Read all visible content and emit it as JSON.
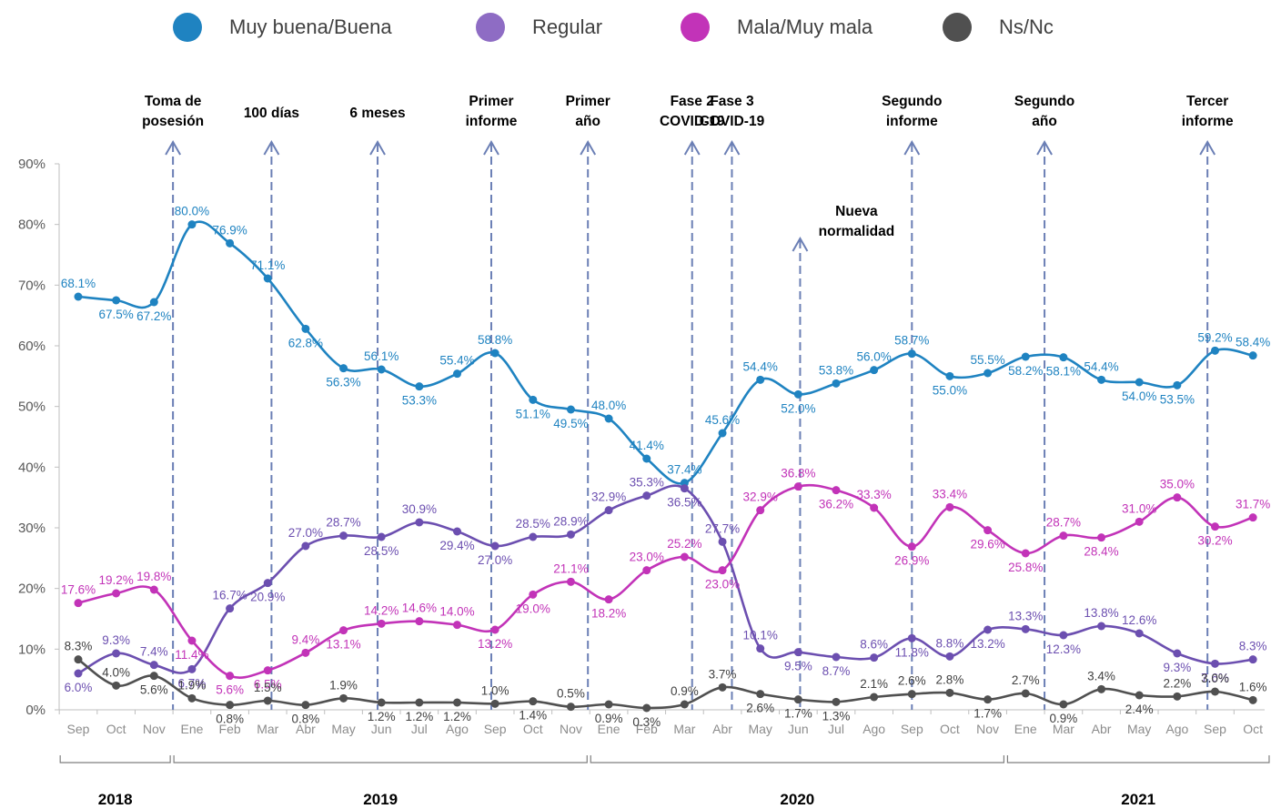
{
  "chart_data": {
    "type": "line",
    "categories": [
      "Sep",
      "Oct",
      "Nov",
      "Ene",
      "Feb",
      "Mar",
      "Abr",
      "May",
      "Jun",
      "Jul",
      "Ago",
      "Sep",
      "Oct",
      "Nov",
      "Ene",
      "Feb",
      "Mar",
      "Abr",
      "May",
      "Jun",
      "Jul",
      "Ago",
      "Sep",
      "Oct",
      "Nov",
      "Ene",
      "Mar",
      "Abr",
      "May",
      "Ago",
      "Sep",
      "Oct"
    ],
    "years": [
      {
        "label": "2018",
        "from": 0,
        "to": 2
      },
      {
        "label": "2019",
        "from": 3,
        "to": 13
      },
      {
        "label": "2020",
        "from": 14,
        "to": 24
      },
      {
        "label": "2021",
        "from": 25,
        "to": 31
      }
    ],
    "ylim": [
      0,
      90
    ],
    "yticks": [
      "0%",
      "10%",
      "20%",
      "30%",
      "40%",
      "50%",
      "60%",
      "70%",
      "80%",
      "90%"
    ],
    "series": [
      {
        "name": "Muy buena/Buena",
        "color": "#1F83C1",
        "values": [
          68.1,
          67.5,
          67.2,
          80.0,
          76.9,
          71.1,
          62.8,
          56.3,
          56.1,
          53.3,
          55.4,
          58.8,
          51.1,
          49.5,
          48.0,
          41.4,
          37.4,
          45.6,
          54.4,
          52.0,
          53.8,
          56.0,
          58.7,
          55.0,
          55.5,
          58.2,
          58.1,
          54.4,
          54.0,
          53.5,
          59.2,
          58.4
        ],
        "labels": [
          "68.1%",
          "67.5%",
          "67.2%",
          "80.0%",
          "76.9%",
          "71.1%",
          "62.8%",
          "56.3%",
          "56.1%",
          "53.3%",
          "55.4%",
          "58.8%",
          "51.1%",
          "49.5%",
          "48.0%",
          "41.4%",
          "37.4%",
          "45.6%",
          "54.4%",
          "52.0%",
          "53.8%",
          "56.0%",
          "58.7%",
          "55.0%",
          "55.5%",
          "58.2%",
          "58.1%",
          "54.4%",
          "54.0%",
          "53.5%",
          "59.2%",
          "58.4%"
        ]
      },
      {
        "name": "Regular",
        "color": "#6C4FB0",
        "values": [
          6.0,
          9.3,
          7.4,
          6.7,
          16.7,
          20.9,
          27.0,
          28.7,
          28.5,
          30.9,
          29.4,
          27.0,
          28.5,
          28.9,
          32.9,
          35.3,
          36.5,
          27.7,
          10.1,
          9.5,
          8.7,
          8.6,
          11.8,
          8.8,
          13.2,
          13.3,
          12.3,
          13.8,
          12.6,
          9.3,
          7.6,
          8.3
        ],
        "labels": [
          "6.0%",
          "9.3%",
          "7.4%",
          "6.7%",
          "16.7%",
          "20.9%",
          "27.0%",
          "28.7%",
          "28.5%",
          "30.9%",
          "29.4%",
          "27.0%",
          "28.5%",
          "28.9%",
          "32.9%",
          "35.3%",
          "36.5%",
          "27.7%",
          "10.1%",
          "9.5%",
          "8.7%",
          "8.6%",
          "11.8%",
          "8.8%",
          "13.2%",
          "13.3%",
          "12.3%",
          "13.8%",
          "12.6%",
          "9.3%",
          "7.6%",
          "8.3%"
        ]
      },
      {
        "name": "Mala/Muy mala",
        "color": "#C233B8",
        "values": [
          17.6,
          19.2,
          19.8,
          11.4,
          5.6,
          6.5,
          9.4,
          13.1,
          14.2,
          14.6,
          14.0,
          13.2,
          19.0,
          21.1,
          18.2,
          23.0,
          25.2,
          23.0,
          32.9,
          36.8,
          36.2,
          33.3,
          26.9,
          33.4,
          29.6,
          25.8,
          28.7,
          28.4,
          31.0,
          35.0,
          30.2,
          31.7
        ],
        "labels": [
          "17.6%",
          "19.2%",
          "19.8%",
          "11.4%",
          "5.6%",
          "6.5%",
          "9.4%",
          "13.1%",
          "14.2%",
          "14.6%",
          "14.0%",
          "13.2%",
          "19.0%",
          "21.1%",
          "18.2%",
          "23.0%",
          "25.2%",
          "23.0%",
          "32.9%",
          "36.8%",
          "36.2%",
          "33.3%",
          "26.9%",
          "33.4%",
          "29.6%",
          "25.8%",
          "28.7%",
          "28.4%",
          "31.0%",
          "35.0%",
          "30.2%",
          "31.7%"
        ]
      },
      {
        "name": "Ns/Nc",
        "color": "#505050",
        "values": [
          8.3,
          4.0,
          5.6,
          1.9,
          0.8,
          1.5,
          0.8,
          1.9,
          1.2,
          1.2,
          1.2,
          1.0,
          1.4,
          0.5,
          0.9,
          0.3,
          0.9,
          3.7,
          2.6,
          1.7,
          1.3,
          2.1,
          2.6,
          2.8,
          1.7,
          2.7,
          0.9,
          3.4,
          2.4,
          2.2,
          3.0,
          1.6
        ],
        "labels": [
          "8.3%",
          "4.0%",
          "5.6%",
          "1.9%",
          "0.8%",
          "1.5%",
          "0.8%",
          "1.9%",
          "1.2%",
          "1.2%",
          "1.2%",
          "1.0%",
          "1.4%",
          "0.5%",
          "0.9%",
          "0.3%",
          "0.9%",
          "3.7%",
          "2.6%",
          "1.7%",
          "1.3%",
          "2.1%",
          "2.6%",
          "2.8%",
          "1.7%",
          "2.7%",
          "0.9%",
          "3.4%",
          "2.4%",
          "2.2%",
          "3.0%",
          "1.6%"
        ]
      }
    ],
    "annotations": [
      {
        "text": [
          "Toma de",
          "posesión"
        ],
        "at": 2.5
      },
      {
        "text": [
          "100 días"
        ],
        "at": 5.1
      },
      {
        "text": [
          "6 meses"
        ],
        "at": 7.9
      },
      {
        "text": [
          "Primer",
          "informe"
        ],
        "at": 10.9
      },
      {
        "text": [
          "Primer",
          "año"
        ],
        "at": 13.45
      },
      {
        "text": [
          "Fase 2",
          "COVID-19"
        ],
        "at": 16.2
      },
      {
        "text": [
          "Fase 3",
          "COVID-19"
        ],
        "at": 17.25
      },
      {
        "text": [
          "Nueva",
          "normalidad"
        ],
        "at": 19.05
      },
      {
        "text": [
          "Segundo",
          "informe"
        ],
        "at": 22.0
      },
      {
        "text": [
          "Segundo",
          "año"
        ],
        "at": 25.5
      },
      {
        "text": [
          "Tercer",
          "informe"
        ],
        "at": 29.8
      }
    ]
  }
}
